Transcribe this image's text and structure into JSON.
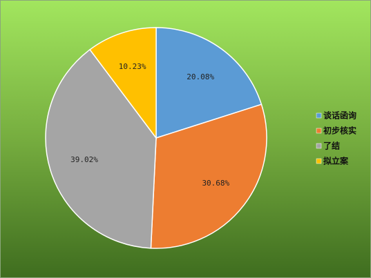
{
  "chart_data": {
    "type": "pie",
    "categories": [
      "谈话函询",
      "初步核实",
      "了结",
      "拟立案"
    ],
    "values": [
      20.08,
      30.68,
      39.02,
      10.23
    ],
    "value_labels": [
      "20.08%",
      "30.68%",
      "39.02%",
      "10.23%"
    ],
    "colors": [
      "#5b9bd5",
      "#ed7d31",
      "#a5a5a5",
      "#ffc000"
    ],
    "legend": "right"
  }
}
